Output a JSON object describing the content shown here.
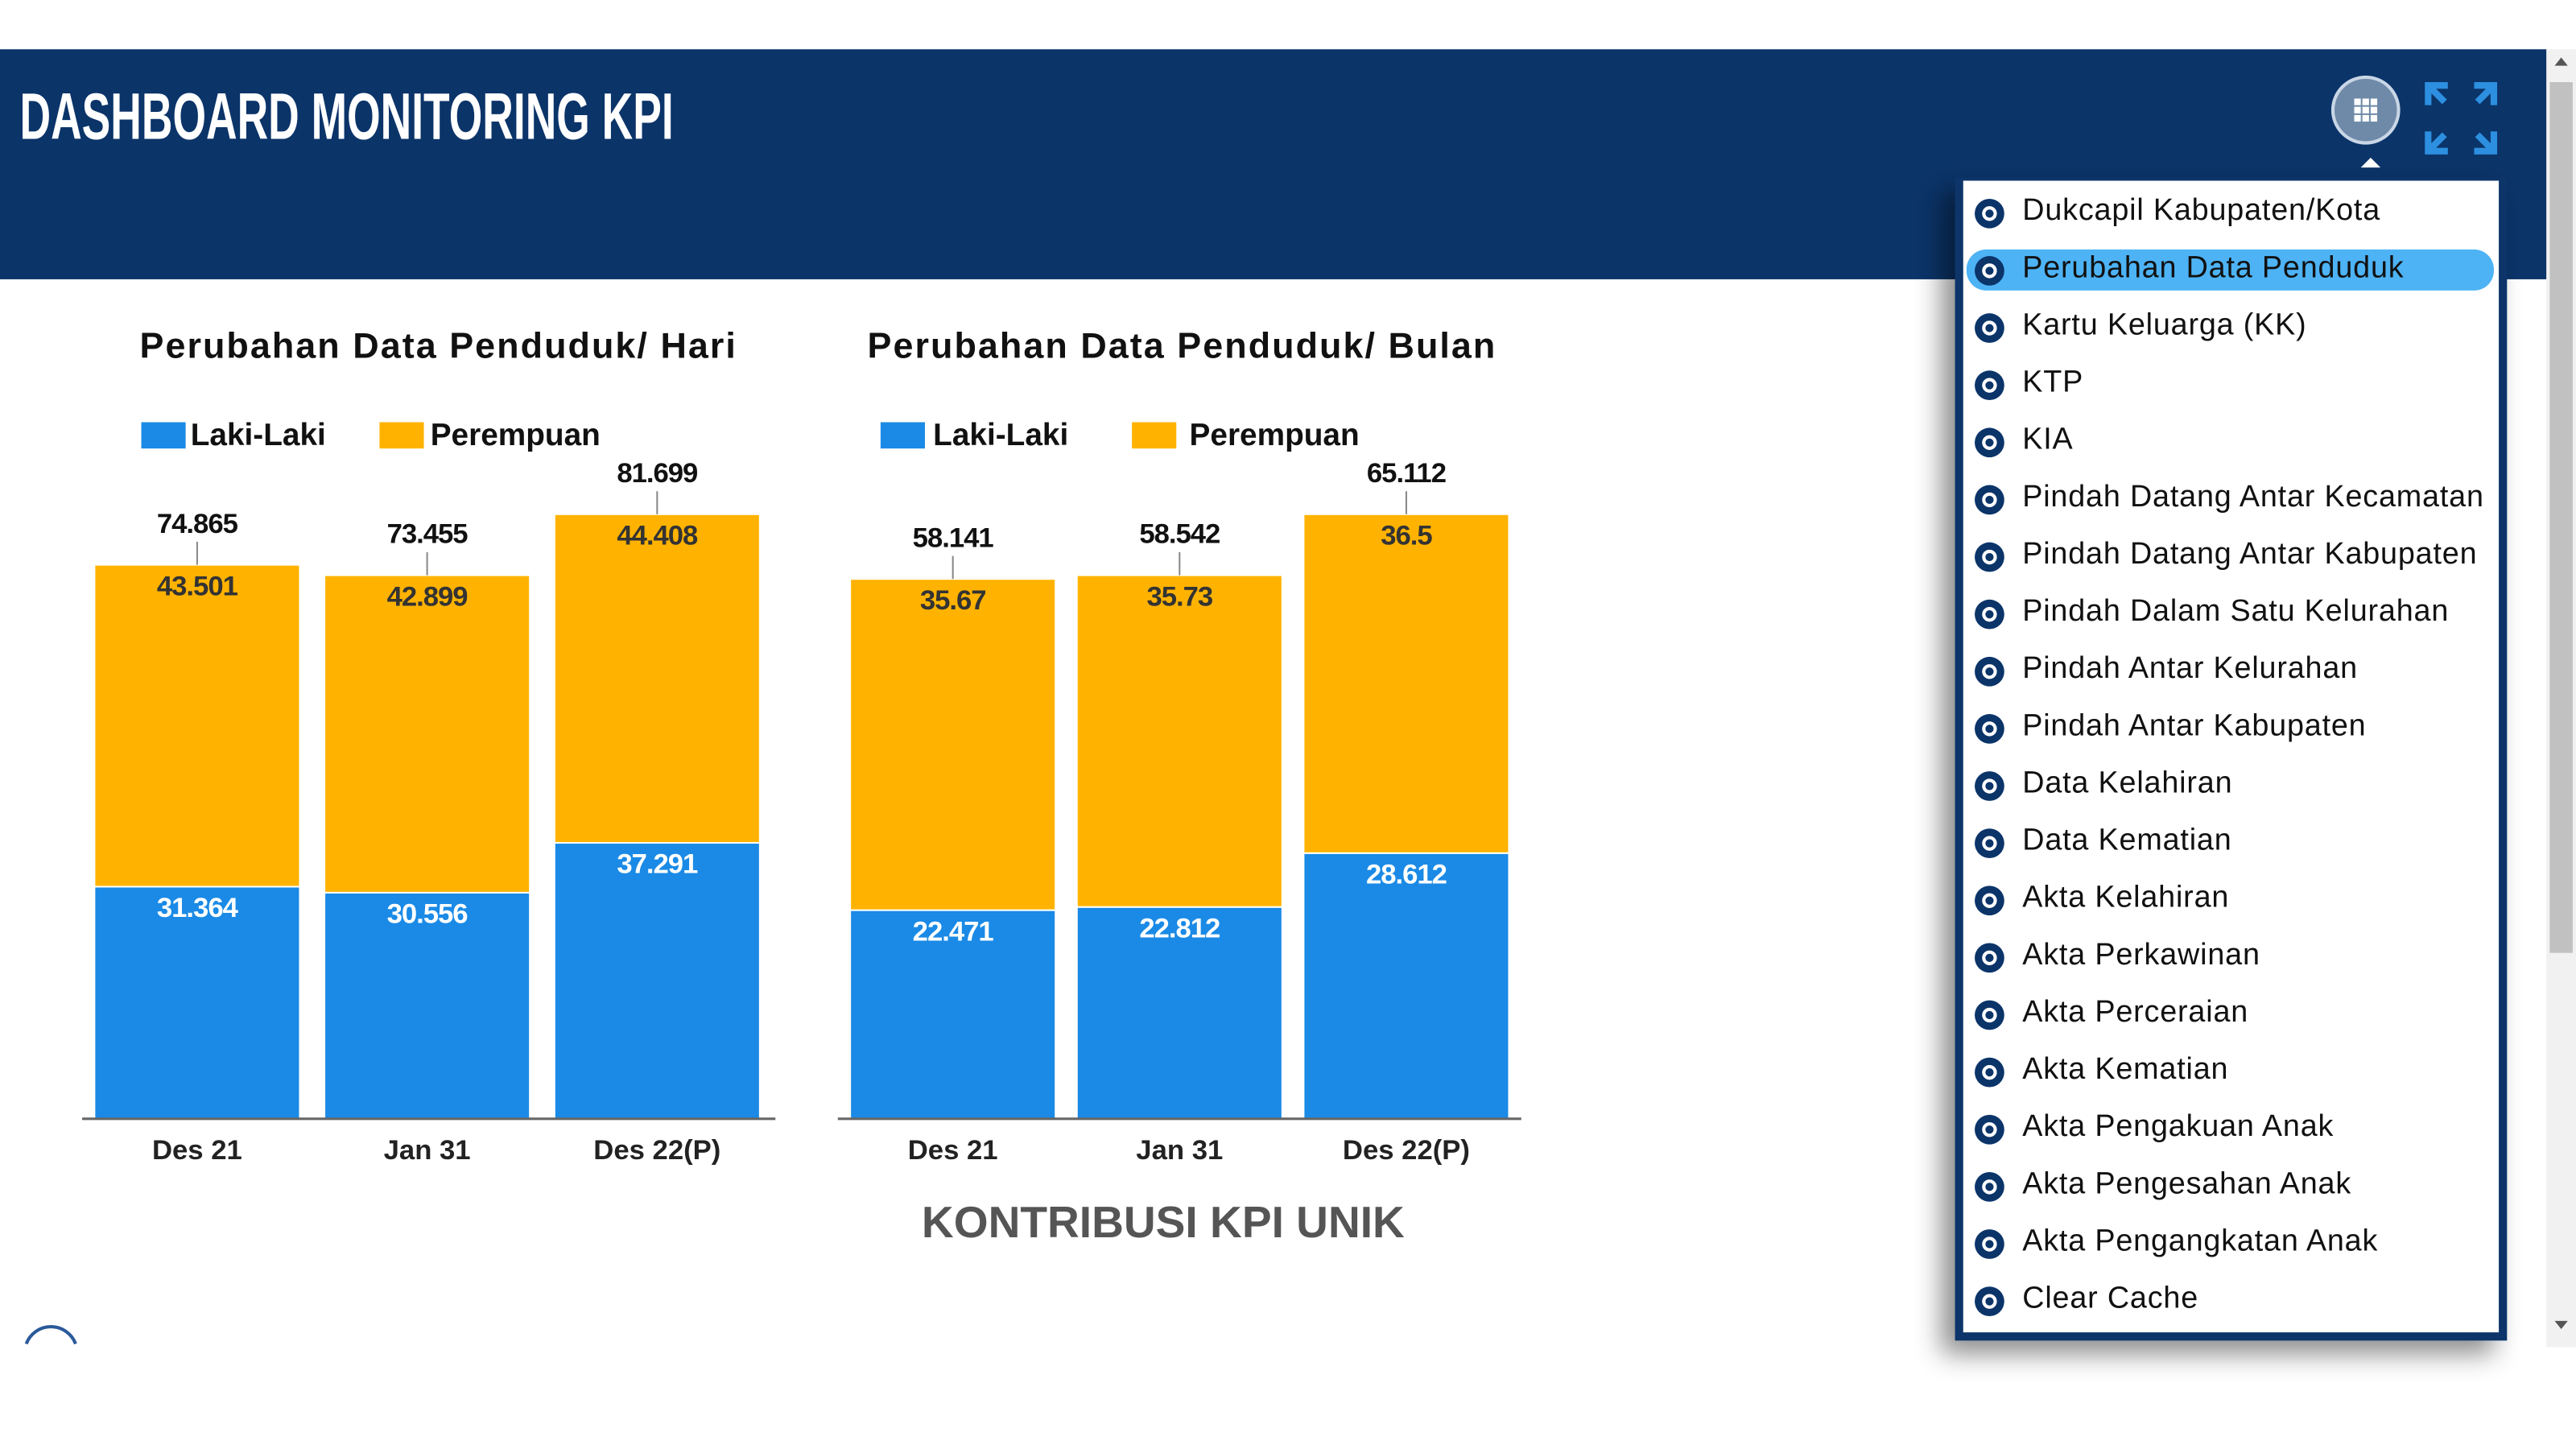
{
  "header": {
    "title": "DASHBOARD MONITORING KPI"
  },
  "chart_data": [
    {
      "type": "stacked-bar",
      "title": "Perubahan Data Penduduk/ Hari",
      "categories": [
        "Des 21",
        "Jan 31",
        "Des 22(P)"
      ],
      "series": [
        {
          "name": "Laki-Laki",
          "color": "#1a8ae6",
          "values": [
            31.364,
            30.556,
            37.291
          ]
        },
        {
          "name": "Perempuan",
          "color": "#ffb300",
          "values": [
            43.501,
            42.899,
            44.408
          ]
        }
      ],
      "totals": [
        74.865,
        73.455,
        81.699
      ]
    },
    {
      "type": "stacked-bar",
      "title": "Perubahan Data Penduduk/ Bulan",
      "categories": [
        "Des 21",
        "Jan 31",
        "Des 22(P)"
      ],
      "series": [
        {
          "name": "Laki-Laki",
          "color": "#1a8ae6",
          "values": [
            22.471,
            22.812,
            28.612
          ]
        },
        {
          "name": "Perempuan",
          "color": "#ffb300",
          "values": [
            35.67,
            35.73,
            36.5
          ]
        }
      ],
      "totals": [
        58.141,
        58.542,
        65.112
      ]
    }
  ],
  "section_title": "KONTRIBUSI KPI UNIK",
  "menu": {
    "selected": 1,
    "items": [
      "Dukcapil Kabupaten/Kota",
      "Perubahan Data Penduduk",
      "Kartu Keluarga (KK)",
      "KTP",
      "KIA",
      "Pindah Datang Antar Kecamatan",
      "Pindah Datang Antar Kabupaten",
      "Pindah Dalam Satu Kelurahan",
      "Pindah Antar Kelurahan",
      "Pindah Antar Kabupaten",
      "Data Kelahiran",
      "Data Kematian",
      "Akta Kelahiran",
      "Akta Perkawinan",
      "Akta Perceraian",
      "Akta Kematian",
      "Akta Pengakuan Anak",
      "Akta Pengesahan Anak",
      "Akta Pengangkatan Anak",
      "Clear Cache"
    ]
  }
}
